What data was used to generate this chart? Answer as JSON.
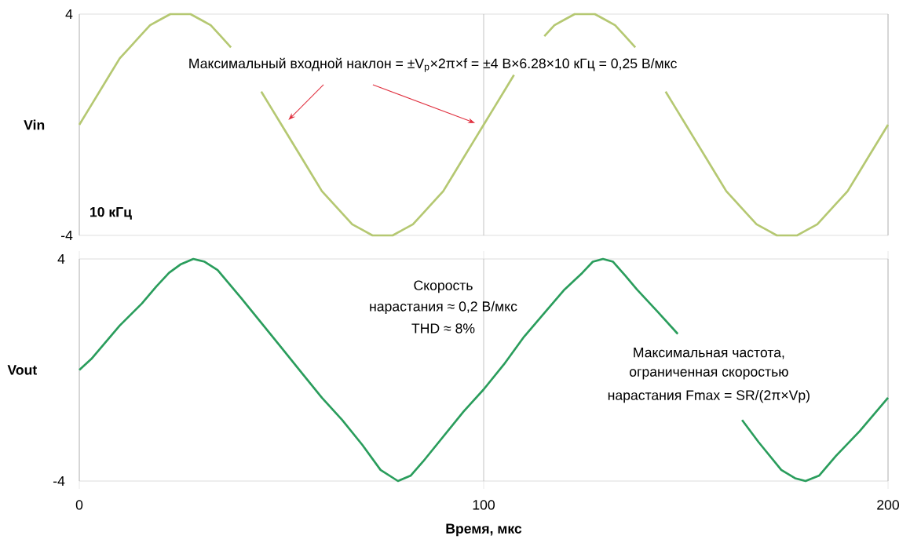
{
  "chart_data": [
    {
      "type": "line",
      "ylabel": "Vin",
      "xlim": [
        0,
        200
      ],
      "ylim": [
        -4,
        4
      ],
      "xticks": [
        0,
        100,
        200
      ],
      "yticks": [
        -4,
        4
      ],
      "grid": "x",
      "tick_labels": "y",
      "annotations": [
        "Максимальный входной наклон = ±V$_{p}$×2π×f = ±4 В×6.28×10 кГц = 0,25 В/мкс",
        "10 кГц"
      ],
      "series": [
        {
          "color": "#b5c872",
          "line_style": "solid",
          "x": [
            0,
            2.5,
            5,
            7.5,
            10,
            12.5,
            15,
            17.5,
            20,
            22.5,
            25,
            27.5,
            30,
            32.5,
            35,
            37.5,
            40,
            42.5,
            45,
            47.5,
            50,
            52.5,
            55,
            57.5,
            60,
            62.5,
            65,
            67.5,
            70,
            72.5,
            75,
            77.5,
            80,
            82.5,
            85,
            87.5,
            90,
            92.5,
            95,
            97.5,
            100,
            102.5,
            105,
            107.5,
            110,
            112.5,
            115,
            117.5,
            120,
            122.5,
            125,
            127.5,
            130,
            132.5,
            135,
            137.5,
            140,
            142.5,
            145,
            147.5,
            150,
            152.5,
            155,
            157.5,
            160,
            162.5,
            165,
            167.5,
            170,
            172.5,
            175,
            177.5,
            180,
            182.5,
            185,
            187.5,
            190,
            192.5,
            195,
            197.5,
            200
          ],
          "values": [
            0,
            0.6,
            1.2,
            1.8,
            2.4,
            2.8,
            3.2,
            3.6,
            3.8,
            4,
            4,
            4,
            3.8,
            3.6,
            3.2,
            2.8,
            null,
            null,
            1.2,
            0.6,
            0,
            -0.6,
            -1.2,
            -1.8,
            -2.4,
            -2.8,
            -3.2,
            -3.6,
            -3.8,
            -4,
            -4,
            -4,
            -3.8,
            -3.6,
            -3.2,
            -2.8,
            -2.4,
            -1.8,
            -1.2,
            -0.6,
            0,
            0.6,
            1.2,
            1.8,
            null,
            null,
            3.2,
            3.6,
            3.8,
            4,
            4,
            4,
            3.8,
            3.6,
            3.2,
            2.8,
            null,
            null,
            1.2,
            0.6,
            0,
            -0.6,
            -1.2,
            -1.8,
            -2.4,
            -2.8,
            -3.2,
            -3.6,
            -3.8,
            -4,
            -4,
            -4,
            -3.8,
            -3.6,
            -3.2,
            -2.8,
            -2.4,
            -1.8,
            -1.2,
            -0.6,
            0
          ]
        }
      ]
    },
    {
      "type": "line",
      "ylabel": "Vout",
      "xlabel": "Время, мкс",
      "xlim": [
        0,
        200
      ],
      "ylim": [
        -4,
        4
      ],
      "xticks": [
        0,
        100,
        200
      ],
      "yticks": [
        -4,
        4
      ],
      "grid": "x",
      "annotations": [
        "Скорость",
        "нарастания ≈ 0,2 В/мкс",
        "THD ≈ 8%",
        "Максимальная частота,",
        "ограниченная скоростью",
        "нарастания Fmax = SR/(2π×Vp)"
      ],
      "series": [
        {
          "color": "#2a9d5c",
          "line_style": "solid",
          "x": [
            0,
            3,
            6.5,
            10,
            15.5,
            19,
            22.2,
            25,
            28.2,
            31,
            34.2,
            40,
            45,
            50,
            55,
            60,
            65,
            70,
            74.5,
            78.8,
            82,
            85,
            90,
            95,
            100,
            105,
            110,
            115.3,
            120,
            124.4,
            127,
            129.5,
            132,
            135,
            137.9,
            143,
            148,
            156,
            163.9,
            168,
            173.6,
            177,
            179.6,
            183,
            187.1,
            193,
            200
          ],
          "values": [
            0,
            0.4,
            1,
            1.6,
            2.4,
            3,
            3.5,
            3.8,
            4,
            3.9,
            3.6,
            2.6,
            1.7,
            0.8,
            -0.1,
            -1,
            -1.8,
            -2.7,
            -3.6,
            -4,
            -3.8,
            -3.3,
            -2.4,
            -1.5,
            -0.7,
            0.2,
            1.2,
            2.1,
            2.9,
            3.5,
            3.9,
            4,
            3.9,
            3.4,
            2.9,
            2.1,
            1.3,
            null,
            -1.8,
            -2.6,
            -3.6,
            -3.9,
            -4,
            -3.8,
            -3.1,
            -2.2,
            -1
          ]
        }
      ]
    }
  ]
}
